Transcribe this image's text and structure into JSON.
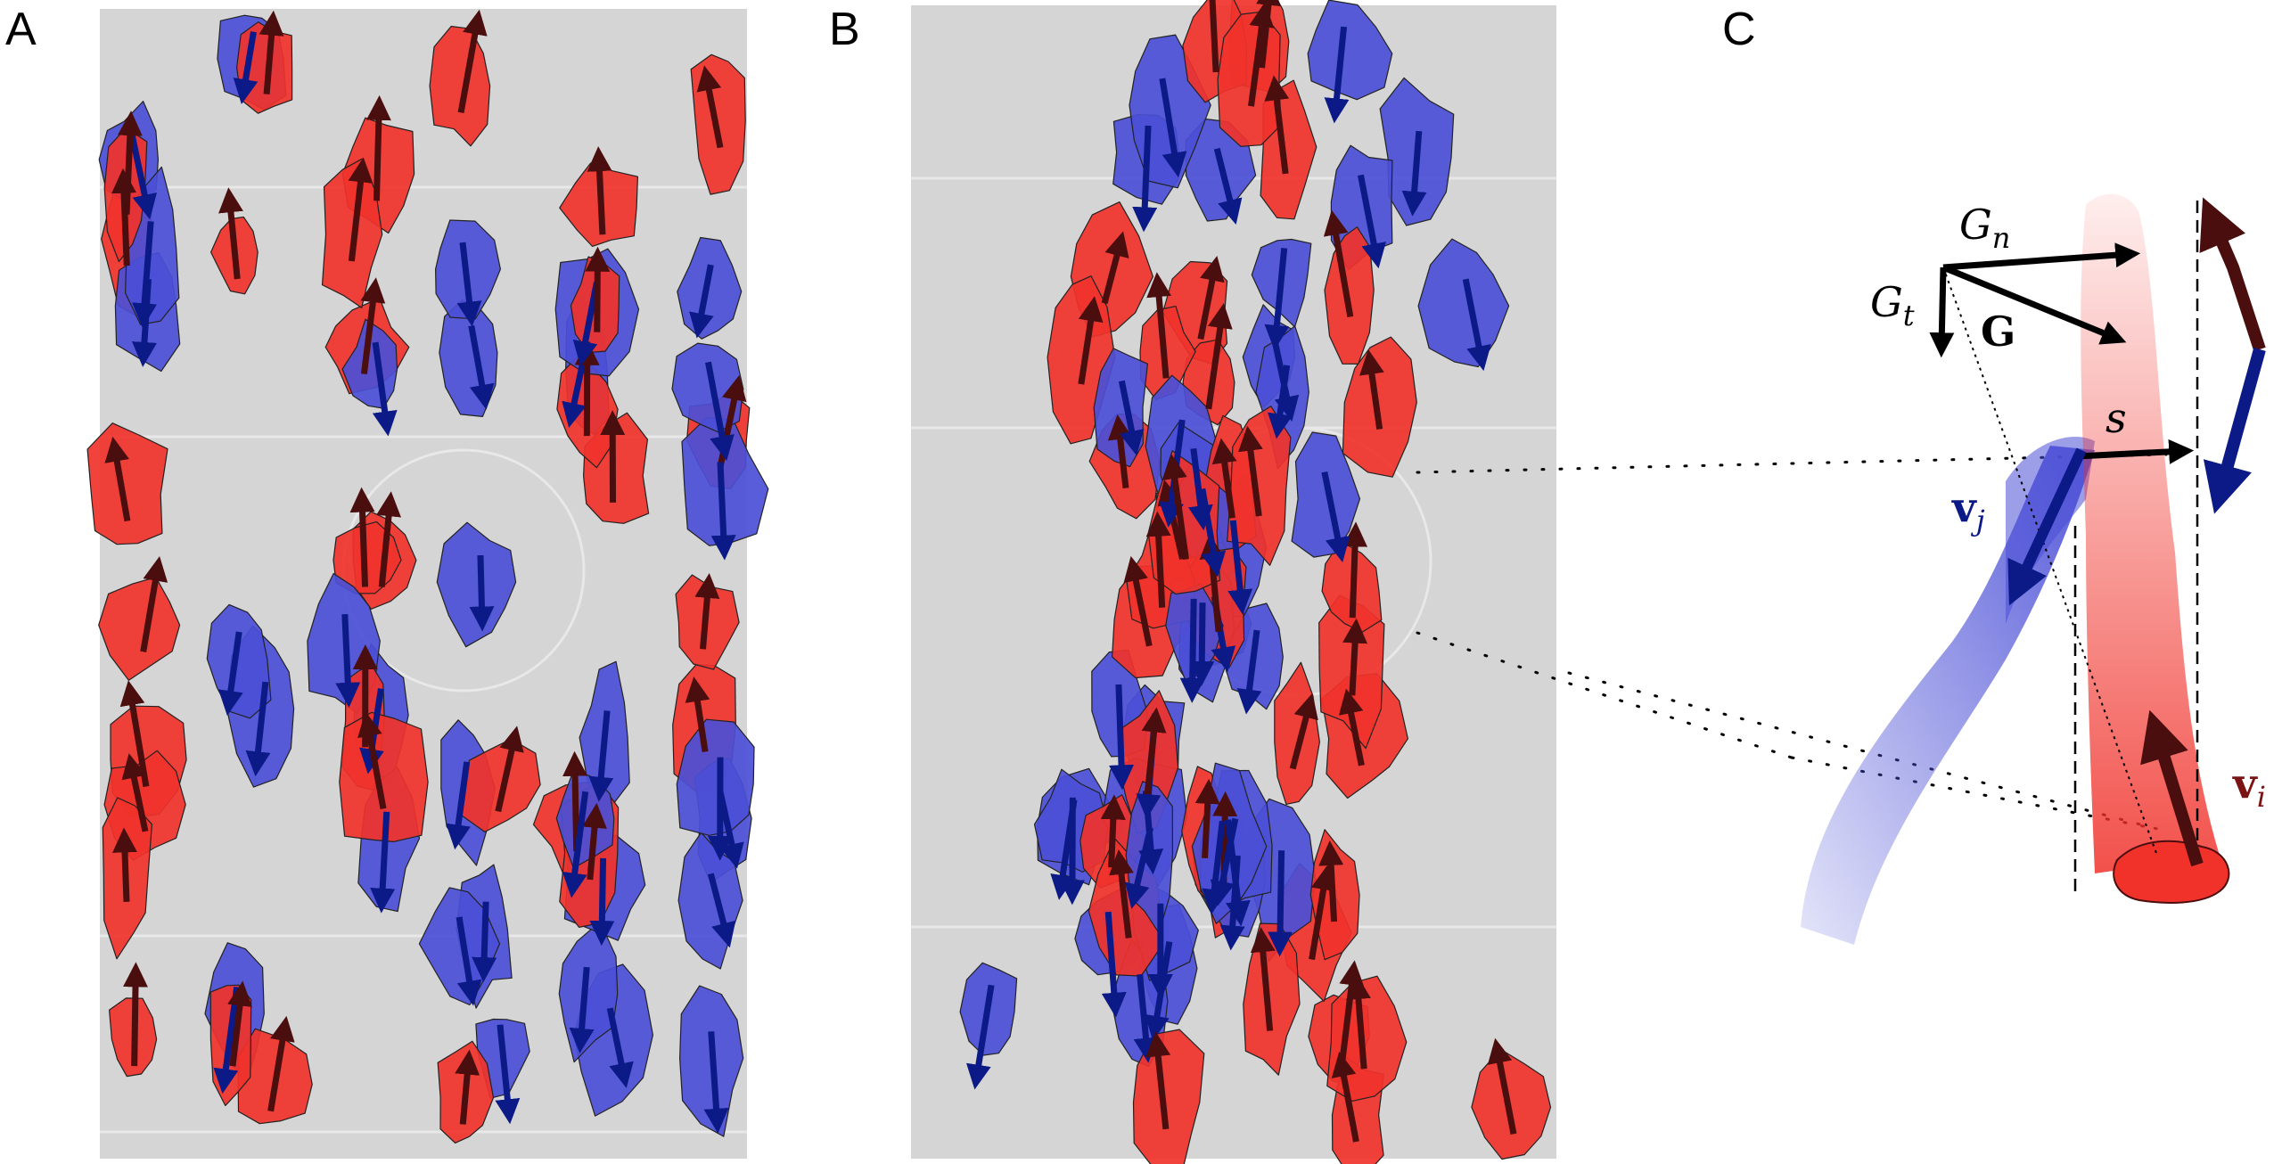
{
  "panels": [
    {
      "letter": "A"
    },
    {
      "letter": "B"
    },
    {
      "letter": "C"
    }
  ],
  "labels": {
    "gn_base": "G",
    "gn_sub": "n",
    "gt_base": "G",
    "gt_sub": "t",
    "g": "G",
    "s": "s",
    "vj_base": "v",
    "vj_sub": "j",
    "vi_base": "v",
    "vi_sub": "i"
  },
  "colors": {
    "red_group": "#f0322b",
    "blue_group": "#4b4fd6",
    "red_arrow": "#4a0e0e",
    "blue_arrow": "#0b1a86",
    "floor": "#d5d5d5",
    "vector": "#000000"
  }
}
